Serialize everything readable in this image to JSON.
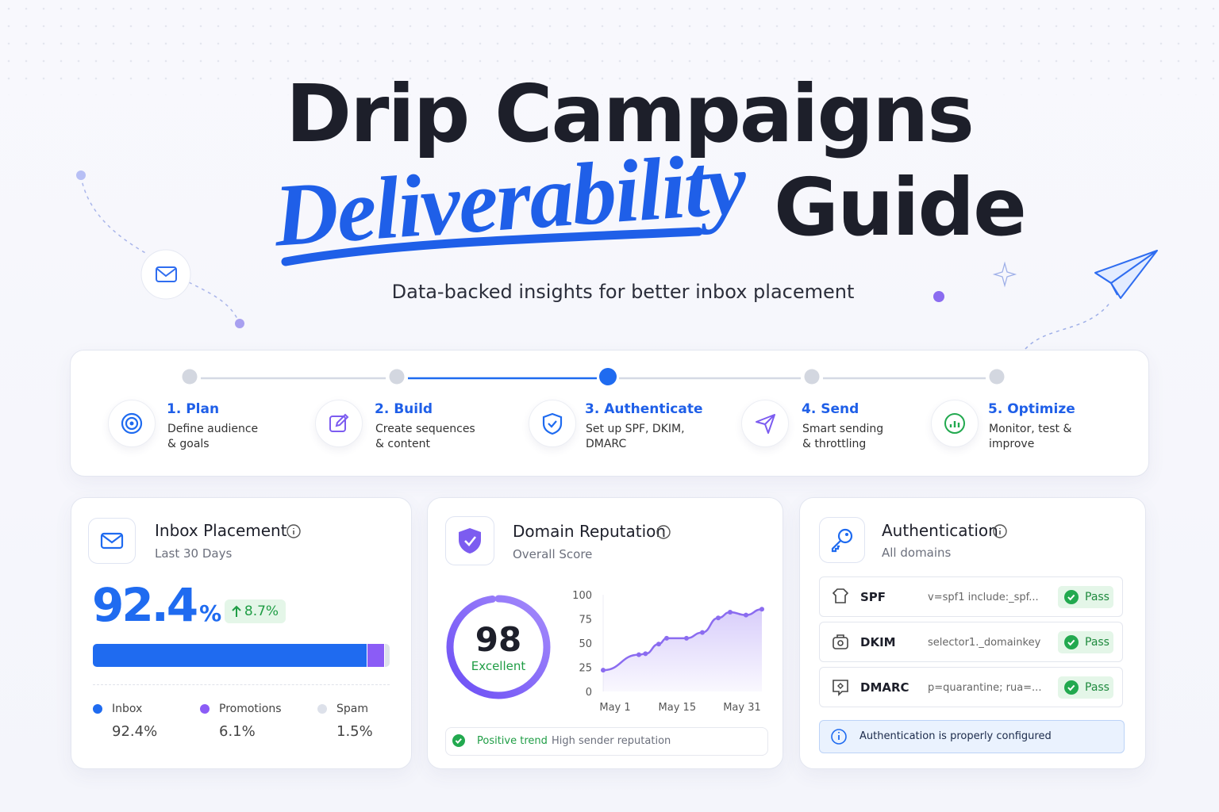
{
  "header": {
    "title": "Drip Campaigns",
    "highlight": "Deliverability",
    "title_end": "Guide",
    "subtitle": "Data-backed insights for better inbox placement"
  },
  "steps": [
    {
      "label": "1. Plan",
      "desc": [
        "Define audience",
        "& goals"
      ]
    },
    {
      "label": "2. Build",
      "desc": [
        "Create sequences",
        "& content"
      ]
    },
    {
      "label": "3. Authenticate",
      "desc": [
        "Set up SPF, DKIM,",
        "DMARC"
      ],
      "active": true
    },
    {
      "label": "4. Send",
      "desc": [
        "Smart sending",
        "& throttling"
      ]
    },
    {
      "label": "5. Optimize",
      "desc": [
        "Monitor, test &",
        "improve"
      ]
    }
  ],
  "inbox_card": {
    "title": "Inbox Placement",
    "subtitle": "Last 30 Days",
    "rate": 92.4,
    "rate_unit": "%",
    "change": "8.7%",
    "segments": [
      {
        "name": "Inbox",
        "value": 92.4,
        "value_label": "92.4%",
        "color": "#1f6bf0"
      },
      {
        "name": "Promotions",
        "value": 6.1,
        "value_label": "6.1%",
        "color": "#8b5cf6"
      },
      {
        "name": "Spam",
        "value": 1.5,
        "value_label": "1.5%",
        "color": "#dde1ea"
      }
    ]
  },
  "reputation_card": {
    "title": "Domain Reputation",
    "subtitle": "Overall Score",
    "score": 98,
    "score_label": "Excellent",
    "trend": "Positive trend",
    "trend_note": "High sender reputation"
  },
  "chart_data": {
    "type": "line",
    "x": [
      1,
      7.75,
      9,
      11.5,
      13,
      16.75,
      19.75,
      22.75,
      25,
      28,
      31
    ],
    "series": [
      {
        "color": "#8b6cf0",
        "values": [
          22,
          38,
          39,
          49,
          55,
          55,
          61,
          76,
          82,
          79,
          85
        ]
      }
    ],
    "xlim": [
      1,
      31
    ],
    "xticks": [
      {
        "value": 1,
        "label": "May 1"
      },
      {
        "value": 15,
        "label": "May 15"
      },
      {
        "value": 31,
        "label": "May 31"
      }
    ],
    "ylim": [
      0,
      100
    ],
    "yticks": [
      0,
      25,
      50,
      75,
      100
    ]
  },
  "auth_card": {
    "title": "Authentication",
    "subtitle": "All domains",
    "records": [
      {
        "name": "SPF",
        "value": "v=spf1 include:_spf...",
        "status": "Pass"
      },
      {
        "name": "DKIM",
        "value": "selector1._domainkey",
        "status": "Pass"
      },
      {
        "name": "DMARC",
        "value": "p=quarantine; rua=...",
        "status": "Pass"
      }
    ],
    "note": "Authentication is properly configured"
  }
}
